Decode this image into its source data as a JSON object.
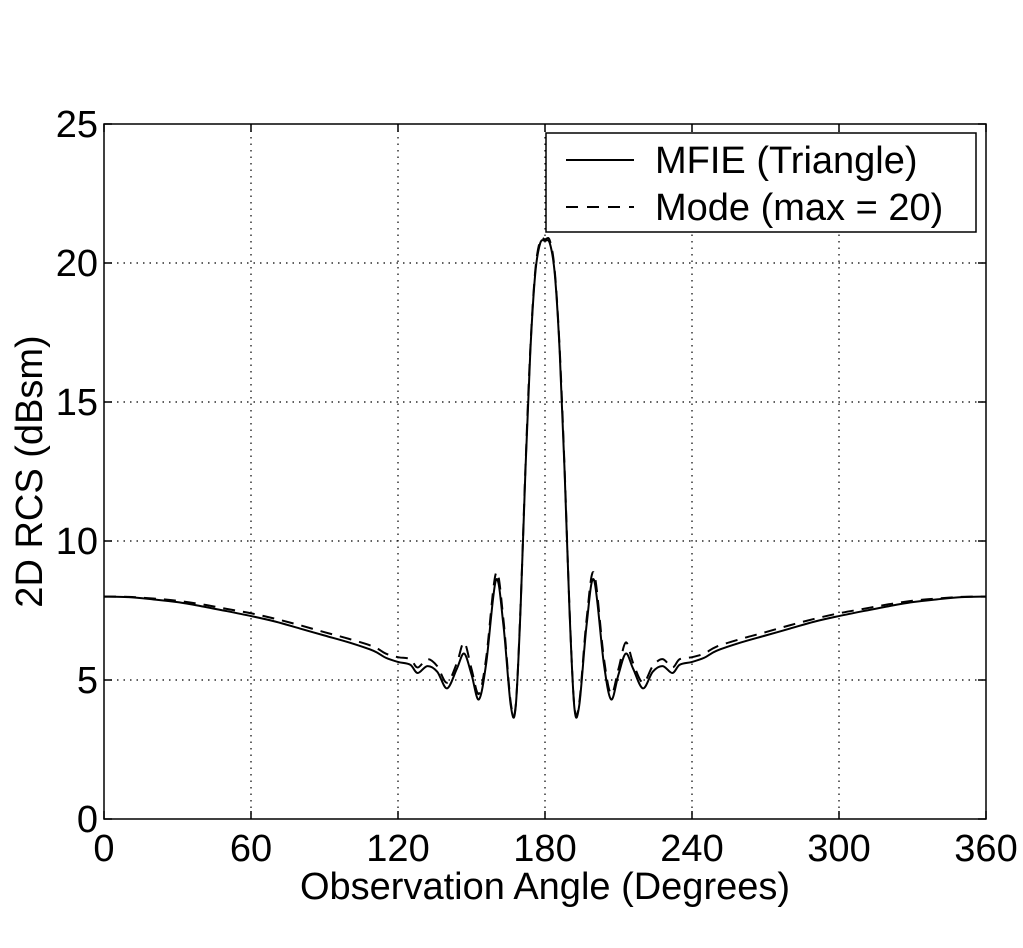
{
  "chart_data": {
    "type": "line",
    "title": "",
    "xlabel": "Observation Angle (Degrees)",
    "ylabel": "2D RCS (dBsm)",
    "xlim": [
      0,
      360
    ],
    "ylim": [
      0,
      25
    ],
    "xticks": [
      0,
      60,
      120,
      180,
      240,
      300,
      360
    ],
    "yticks": [
      0,
      5,
      10,
      15,
      20,
      25
    ],
    "xtick_labels": [
      "0",
      "60",
      "120",
      "180",
      "240",
      "300",
      "360"
    ],
    "ytick_labels": [
      "0",
      "5",
      "10",
      "15",
      "20",
      "25"
    ],
    "grid": true,
    "legend_position": "top-right",
    "series": [
      {
        "name": "MFIE (Triangle)",
        "style": "solid",
        "color": "#000000",
        "x": [
          0,
          10,
          20,
          30,
          40,
          50,
          60,
          70,
          80,
          90,
          100,
          110,
          115,
          120,
          125,
          128,
          132,
          136,
          140,
          144,
          147,
          150,
          153,
          156,
          160,
          163,
          166,
          168,
          170,
          172,
          174,
          176,
          178,
          180,
          182,
          184,
          186,
          188,
          190,
          192,
          194,
          197,
          200,
          204,
          207,
          210,
          213,
          216,
          220,
          224,
          228,
          232,
          235,
          240,
          245,
          250,
          260,
          270,
          280,
          290,
          300,
          310,
          320,
          330,
          340,
          350,
          360
        ],
        "y": [
          8.0,
          7.98,
          7.9,
          7.8,
          7.65,
          7.48,
          7.3,
          7.1,
          6.85,
          6.6,
          6.35,
          6.05,
          5.8,
          5.65,
          5.55,
          5.25,
          5.5,
          5.3,
          4.7,
          5.4,
          5.95,
          5.2,
          4.3,
          5.6,
          8.6,
          7.0,
          4.1,
          4.0,
          7.5,
          12.5,
          16.8,
          19.6,
          20.7,
          20.8,
          20.7,
          19.6,
          16.8,
          12.5,
          7.5,
          4.0,
          4.1,
          7.0,
          8.6,
          5.6,
          4.3,
          5.2,
          5.95,
          5.4,
          4.7,
          5.3,
          5.5,
          5.25,
          5.55,
          5.65,
          5.8,
          6.05,
          6.35,
          6.6,
          6.85,
          7.1,
          7.3,
          7.48,
          7.65,
          7.8,
          7.9,
          7.98,
          8.0
        ]
      },
      {
        "name": "Mode (max = 20)",
        "style": "dashed",
        "color": "#000000",
        "x": [
          0,
          10,
          20,
          30,
          40,
          50,
          60,
          70,
          80,
          90,
          100,
          110,
          115,
          120,
          125,
          128,
          132,
          136,
          140,
          144,
          147,
          150,
          153,
          156,
          160,
          163,
          166,
          168,
          170,
          172,
          174,
          176,
          178,
          180,
          182,
          184,
          186,
          188,
          190,
          192,
          194,
          197,
          200,
          204,
          207,
          210,
          213,
          216,
          220,
          224,
          228,
          232,
          235,
          240,
          245,
          250,
          260,
          270,
          280,
          290,
          300,
          310,
          320,
          330,
          340,
          350,
          360
        ],
        "y": [
          8.0,
          7.99,
          7.93,
          7.85,
          7.72,
          7.56,
          7.4,
          7.2,
          6.97,
          6.72,
          6.48,
          6.2,
          5.95,
          5.82,
          5.75,
          5.45,
          5.75,
          5.5,
          4.9,
          5.6,
          6.35,
          5.4,
          4.5,
          5.8,
          8.85,
          7.2,
          4.2,
          4.05,
          7.6,
          12.6,
          16.9,
          19.7,
          20.8,
          20.85,
          20.8,
          19.7,
          16.9,
          12.6,
          7.6,
          4.05,
          4.2,
          7.2,
          8.85,
          5.8,
          4.5,
          5.4,
          6.35,
          5.6,
          4.9,
          5.5,
          5.75,
          5.45,
          5.75,
          5.82,
          5.95,
          6.2,
          6.48,
          6.72,
          6.97,
          7.2,
          7.4,
          7.56,
          7.72,
          7.85,
          7.93,
          7.99,
          8.0
        ]
      }
    ]
  }
}
